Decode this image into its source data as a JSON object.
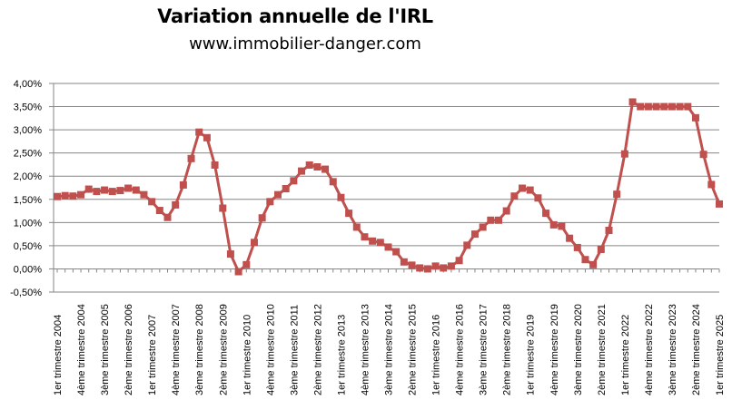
{
  "chart_data": {
    "type": "line",
    "title": "Variation annuelle de l'IRL",
    "subtitle": "www.immobilier-danger.com",
    "xlabel": "",
    "ylabel": "",
    "ylim": [
      -0.5,
      4.0
    ],
    "ytick_values": [
      -0.5,
      0,
      0.5,
      1.0,
      1.5,
      2.0,
      2.5,
      3.0,
      3.5,
      4.0
    ],
    "ytick_labels": [
      "-0,50%",
      "0,00%",
      "0,50%",
      "1,00%",
      "1,50%",
      "2,00%",
      "2,50%",
      "3,00%",
      "3,50%",
      "4,00%"
    ],
    "xtick_labels": [
      "1er trimestre 2004",
      "4ème trimestre 2004",
      "3ème trimestre 2005",
      "2ème trimestre 2006",
      "1er trimestre 2007",
      "4ème trimestre 2007",
      "3ème trimestre 2008",
      "2ème trimestre 2009",
      "1er trimestre 2010",
      "4ème trimestre 2010",
      "3ème trimestre 2011",
      "2ème trimestre 2012",
      "1er trimestre 2013",
      "4ème trimestre 2013",
      "3ème trimestre 2014",
      "2ème trimestre 2015",
      "1er trimestre 2016",
      "4ème trimestre 2016",
      "3ème trimestre 2017",
      "2ème trimestre 2018",
      "1er trimestre 2019",
      "4ème trimestre 2019",
      "3ème trimestre 2020",
      "2ème trimestre 2021",
      "1er trimestre 2022",
      "4ème trimestre 2022",
      "3ème trimestre 2023",
      "2ème trimestre 2024",
      "1er trimestre 2025"
    ],
    "grid": true,
    "legend": "none",
    "colors": {
      "series": "#c0504d",
      "grid": "#868686",
      "axis": "#868686"
    },
    "series": [
      {
        "name": "Variation annuelle de l'IRL",
        "values": [
          1.56,
          1.58,
          1.57,
          1.6,
          1.72,
          1.67,
          1.7,
          1.67,
          1.69,
          1.74,
          1.7,
          1.6,
          1.45,
          1.26,
          1.11,
          1.38,
          1.81,
          2.38,
          2.95,
          2.83,
          2.24,
          1.31,
          0.32,
          -0.06,
          0.09,
          0.57,
          1.1,
          1.45,
          1.6,
          1.73,
          1.9,
          2.11,
          2.24,
          2.2,
          2.15,
          1.88,
          1.54,
          1.2,
          0.9,
          0.69,
          0.6,
          0.57,
          0.47,
          0.37,
          0.15,
          0.08,
          0.02,
          0.0,
          0.06,
          0.02,
          0.06,
          0.18,
          0.51,
          0.75,
          0.9,
          1.05,
          1.05,
          1.25,
          1.57,
          1.74,
          1.7,
          1.53,
          1.2,
          0.95,
          0.92,
          0.66,
          0.46,
          0.2,
          0.09,
          0.42,
          0.83,
          1.61,
          2.48,
          3.6,
          3.5,
          3.5,
          3.5,
          3.5,
          3.5,
          3.5,
          3.5,
          3.26,
          2.47,
          1.82,
          1.4
        ]
      }
    ]
  }
}
